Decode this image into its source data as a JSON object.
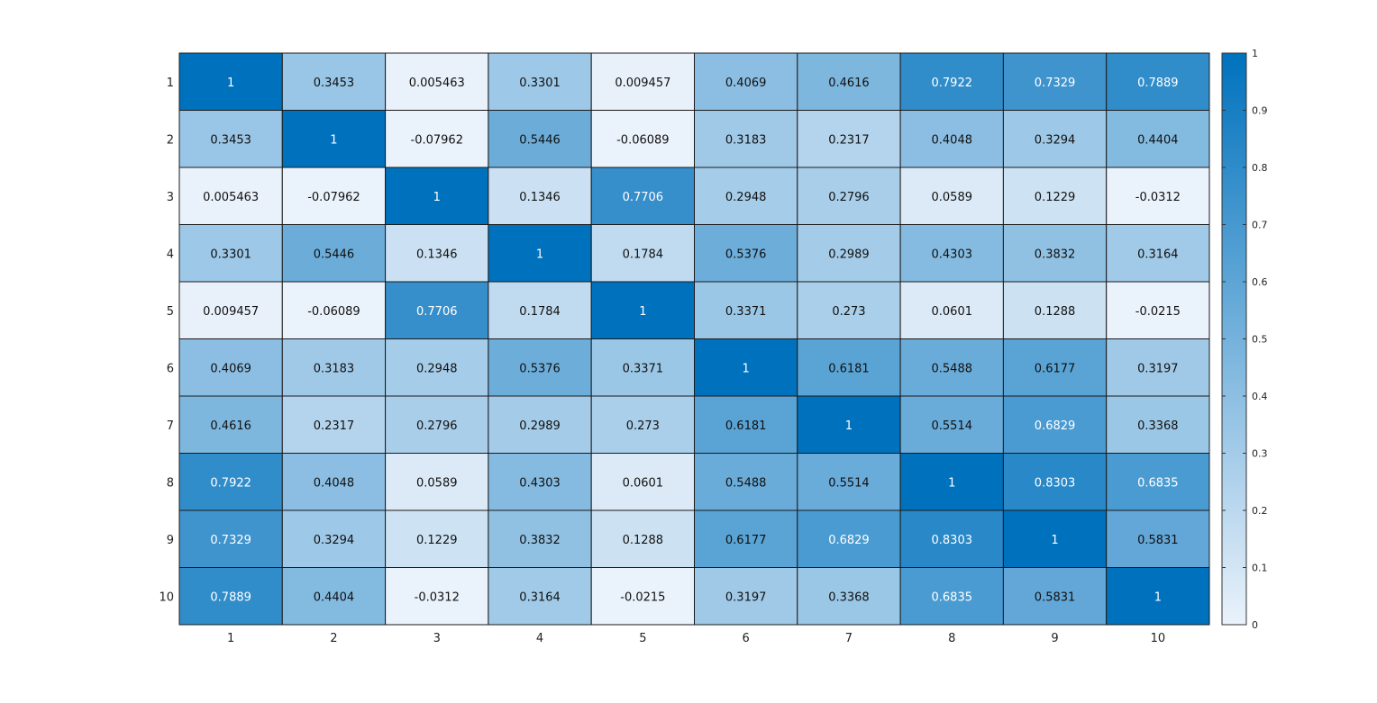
{
  "chart_data": {
    "type": "heatmap",
    "title": "",
    "xlabel": "",
    "ylabel": "",
    "x_labels": [
      "1",
      "2",
      "3",
      "4",
      "5",
      "6",
      "7",
      "8",
      "9",
      "10"
    ],
    "y_labels": [
      "1",
      "2",
      "3",
      "4",
      "5",
      "6",
      "7",
      "8",
      "9",
      "10"
    ],
    "values": [
      [
        1,
        0.3453,
        0.005463,
        0.3301,
        0.009457,
        0.4069,
        0.4616,
        0.7922,
        0.7329,
        0.7889
      ],
      [
        0.3453,
        1,
        -0.07962,
        0.5446,
        -0.06089,
        0.3183,
        0.2317,
        0.4048,
        0.3294,
        0.4404
      ],
      [
        0.005463,
        -0.07962,
        1,
        0.1346,
        0.7706,
        0.2948,
        0.2796,
        0.0589,
        0.1229,
        -0.0312
      ],
      [
        0.3301,
        0.5446,
        0.1346,
        1,
        0.1784,
        0.5376,
        0.2989,
        0.4303,
        0.3832,
        0.3164
      ],
      [
        0.009457,
        -0.06089,
        0.7706,
        0.1784,
        1,
        0.3371,
        0.273,
        0.0601,
        0.1288,
        -0.0215
      ],
      [
        0.4069,
        0.3183,
        0.2948,
        0.5376,
        0.3371,
        1,
        0.6181,
        0.5488,
        0.6177,
        0.3197
      ],
      [
        0.4616,
        0.2317,
        0.2796,
        0.2989,
        0.273,
        0.6181,
        1,
        0.5514,
        0.6829,
        0.3368
      ],
      [
        0.7922,
        0.4048,
        0.0589,
        0.4303,
        0.0601,
        0.5488,
        0.5514,
        1,
        0.8303,
        0.6835
      ],
      [
        0.7329,
        0.3294,
        0.1229,
        0.3832,
        0.1288,
        0.6177,
        0.6829,
        0.8303,
        1,
        0.5831
      ],
      [
        0.7889,
        0.4404,
        -0.0312,
        0.3164,
        -0.0215,
        0.3197,
        0.3368,
        0.6835,
        0.5831,
        1
      ]
    ],
    "cell_labels": [
      [
        "1",
        "0.3453",
        "0.005463",
        "0.3301",
        "0.009457",
        "0.4069",
        "0.4616",
        "0.7922",
        "0.7329",
        "0.7889"
      ],
      [
        "0.3453",
        "1",
        "-0.07962",
        "0.5446",
        "-0.06089",
        "0.3183",
        "0.2317",
        "0.4048",
        "0.3294",
        "0.4404"
      ],
      [
        "0.005463",
        "-0.07962",
        "1",
        "0.1346",
        "0.7706",
        "0.2948",
        "0.2796",
        "0.0589",
        "0.1229",
        "-0.0312"
      ],
      [
        "0.3301",
        "0.5446",
        "0.1346",
        "1",
        "0.1784",
        "0.5376",
        "0.2989",
        "0.4303",
        "0.3832",
        "0.3164"
      ],
      [
        "0.009457",
        "-0.06089",
        "0.7706",
        "0.1784",
        "1",
        "0.3371",
        "0.273",
        "0.0601",
        "0.1288",
        "-0.0215"
      ],
      [
        "0.4069",
        "0.3183",
        "0.2948",
        "0.5376",
        "0.3371",
        "1",
        "0.6181",
        "0.5488",
        "0.6177",
        "0.3197"
      ],
      [
        "0.4616",
        "0.2317",
        "0.2796",
        "0.2989",
        "0.273",
        "0.6181",
        "1",
        "0.5514",
        "0.6829",
        "0.3368"
      ],
      [
        "0.7922",
        "0.4048",
        "0.0589",
        "0.4303",
        "0.0601",
        "0.5488",
        "0.5514",
        "1",
        "0.8303",
        "0.6835"
      ],
      [
        "0.7329",
        "0.3294",
        "0.1229",
        "0.3832",
        "0.1288",
        "0.6177",
        "0.6829",
        "0.8303",
        "1",
        "0.5831"
      ],
      [
        "0.7889",
        "0.4404",
        "-0.0312",
        "0.3164",
        "-0.0215",
        "0.3197",
        "0.3368",
        "0.6835",
        "0.5831",
        "1"
      ]
    ],
    "colorbar": {
      "range": [
        0,
        1
      ],
      "ticks": [
        "0",
        "0.1",
        "0.2",
        "0.3",
        "0.4",
        "0.5",
        "0.6",
        "0.7",
        "0.8",
        "0.9",
        "1"
      ],
      "low_color": "#eaf2fb",
      "high_color": "#0072bd",
      "placement": "right"
    },
    "grid": true,
    "light_text_threshold": 0.65,
    "text_color_dark": "#111111",
    "text_color_light": "#ffffff"
  }
}
